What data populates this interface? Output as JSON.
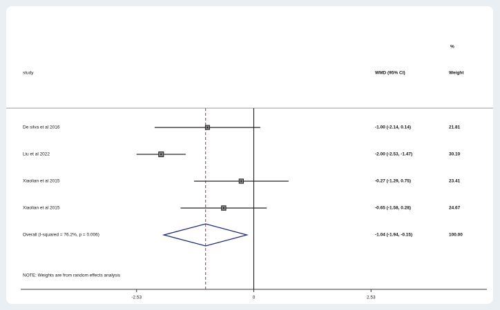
{
  "chart_data": {
    "type": "forest",
    "headers": {
      "study": "study",
      "effect": "WMD (95% CI)",
      "weight_top": "%",
      "weight": "Weight"
    },
    "rows": [
      {
        "study": "De silva et al 2016",
        "est": -1.0,
        "lo": -2.14,
        "hi": 0.14,
        "ci_label": "-1.00 (-2.14, 0.14)",
        "weight": 21.81,
        "weight_label": "21.81"
      },
      {
        "study": "Liu et al 2022",
        "est": -2.0,
        "lo": -2.53,
        "hi": -1.47,
        "ci_label": "-2.00 (-2.53, -1.47)",
        "weight": 30.1,
        "weight_label": "30.10"
      },
      {
        "study": "Xiaolian et al 2015",
        "est": -0.27,
        "lo": -1.29,
        "hi": 0.75,
        "ci_label": "-0.27 (-1.29, 0.75)",
        "weight": 23.41,
        "weight_label": "23.41"
      },
      {
        "study": "Xiaolian et al 2015",
        "est": -0.65,
        "lo": -1.58,
        "hi": 0.28,
        "ci_label": "-0.65 (-1.58, 0.28)",
        "weight": 24.67,
        "weight_label": "24.67"
      }
    ],
    "overall": {
      "study": "Overall  (I-squared = 76.2%, p = 0.006)",
      "est": -1.04,
      "lo": -1.94,
      "hi": -0.15,
      "ci_label": "-1.04 (-1.94, -0.15)",
      "weight": 100.0,
      "weight_label": "100.00"
    },
    "note": "NOTE: Weights are from random effects analysis",
    "xlim": [
      -5.03,
      5.03
    ],
    "xticks": [
      -2.53,
      0,
      2.53
    ],
    "box_color": "#222222",
    "diamond_color": "#1f2a7a",
    "ref_color": "#a0303a"
  }
}
